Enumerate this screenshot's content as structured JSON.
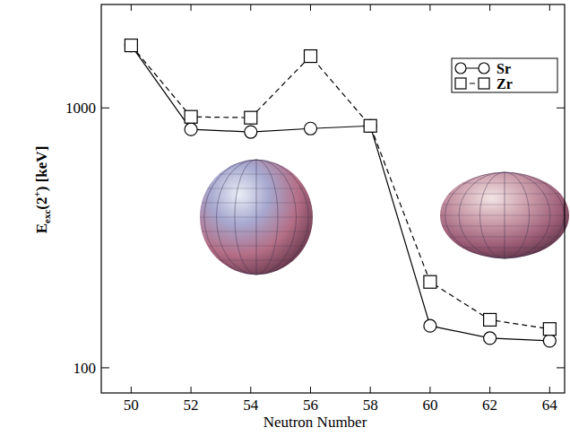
{
  "chart_data": {
    "type": "line",
    "y_label": "Eexc(2+)  [keV]",
    "x_label": "Neutron Number",
    "x": [
      50,
      52,
      54,
      56,
      58,
      60,
      62,
      64
    ],
    "series": [
      {
        "name": "Sr",
        "color": "#000000",
        "marker": "circle",
        "line_style": "solid",
        "values": [
          1740,
          827,
          808,
          833,
          853,
          145,
          130,
          127
        ]
      },
      {
        "name": "Zr",
        "color": "#000000",
        "marker": "square",
        "line_style": "dashed",
        "values": [
          1740,
          924,
          917,
          1582,
          853,
          214,
          153,
          141
        ]
      }
    ],
    "xlim": [
      49,
      64.5
    ],
    "ylim": [
      80,
      2500
    ],
    "xticks": [
      50,
      52,
      54,
      56,
      58,
      60,
      62,
      64
    ],
    "yticks": [
      100,
      1000
    ],
    "log": "y",
    "grid": false,
    "legend": "upper right"
  }
}
